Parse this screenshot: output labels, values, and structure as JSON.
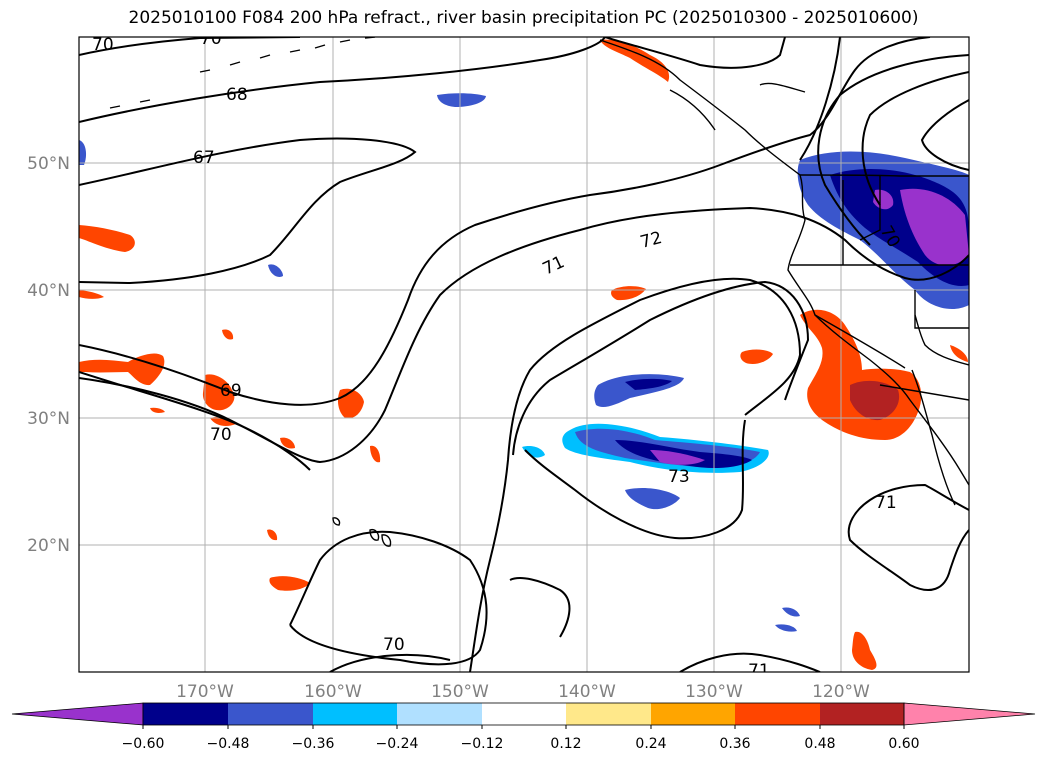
{
  "title": "2025010100 F084 200 hPa refract., river basin precipitation PC (2025010300 - 2025010600)",
  "latitude_labels": [
    "50°N",
    "40°N",
    "30°N",
    "20°N"
  ],
  "longitude_labels": [
    "170°W",
    "160°W",
    "150°W",
    "140°W",
    "130°W",
    "120°W"
  ],
  "contour_labels": [
    "70",
    "68",
    "67",
    "71",
    "72",
    "69",
    "70",
    "70",
    "71",
    "70",
    "73",
    "71",
    "70"
  ],
  "colorbar": {
    "ticks": [
      "−0.60",
      "−0.48",
      "−0.36",
      "−0.24",
      "−0.12",
      "0.12",
      "0.24",
      "0.36",
      "0.48",
      "0.60"
    ],
    "colors": [
      "#9932cc",
      "#00008b",
      "#3a56cc",
      "#00bfff",
      "#b0e0ff",
      "#ffffff",
      "#ffe88a",
      "#ffa500",
      "#ff4500",
      "#b22222",
      "#ff82ab"
    ]
  }
}
